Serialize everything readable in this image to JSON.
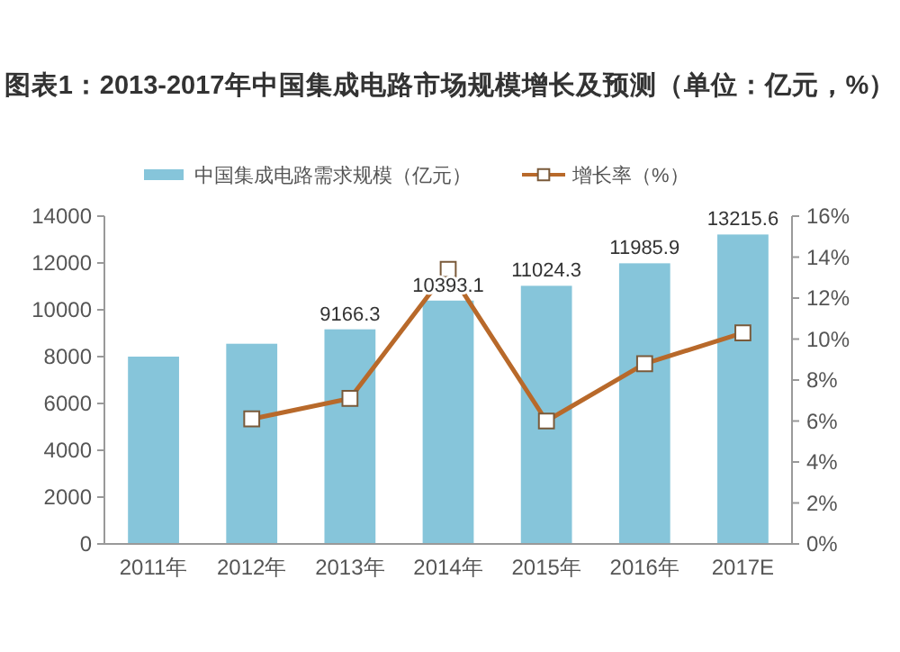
{
  "chart_data": {
    "type": "bar",
    "title": "图表1：2013-2017年中国集成电路市场规模增长及预测（单位：亿元，%）",
    "categories": [
      "2011年",
      "2012年",
      "2013年",
      "2014年",
      "2015年",
      "2016年",
      "2017E"
    ],
    "series": [
      {
        "name": "中国集成电路需求规模（亿元）",
        "color": "#86c5da",
        "values": [
          8000,
          8550,
          9166.3,
          10393.1,
          11024.3,
          11985.9,
          13215.6
        ],
        "value_labels": [
          null,
          null,
          "9166.3",
          "10393.1",
          "11024.3",
          "11985.9",
          "13215.6"
        ]
      },
      {
        "name": "增长率（%）",
        "type": "line",
        "axis": "y2",
        "color": "#b8692a",
        "values": [
          null,
          6.1,
          7.1,
          13.4,
          6.0,
          8.8,
          10.3
        ]
      }
    ],
    "ylim": [
      0,
      14000
    ],
    "yticks": [
      0,
      2000,
      4000,
      6000,
      8000,
      10000,
      12000,
      14000
    ],
    "y2lim": [
      0,
      16
    ],
    "y2ticks": [
      {
        "value": 0,
        "label": "0%"
      },
      {
        "value": 2,
        "label": "2%"
      },
      {
        "value": 4,
        "label": "4%"
      },
      {
        "value": 6,
        "label": "6%"
      },
      {
        "value": 8,
        "label": "8%"
      },
      {
        "value": 10,
        "label": "10%"
      },
      {
        "value": 12,
        "label": "12%"
      },
      {
        "value": 14,
        "label": "14%"
      },
      {
        "value": 16,
        "label": "16%"
      }
    ],
    "legend": "top",
    "marker": "square",
    "grid": false
  }
}
